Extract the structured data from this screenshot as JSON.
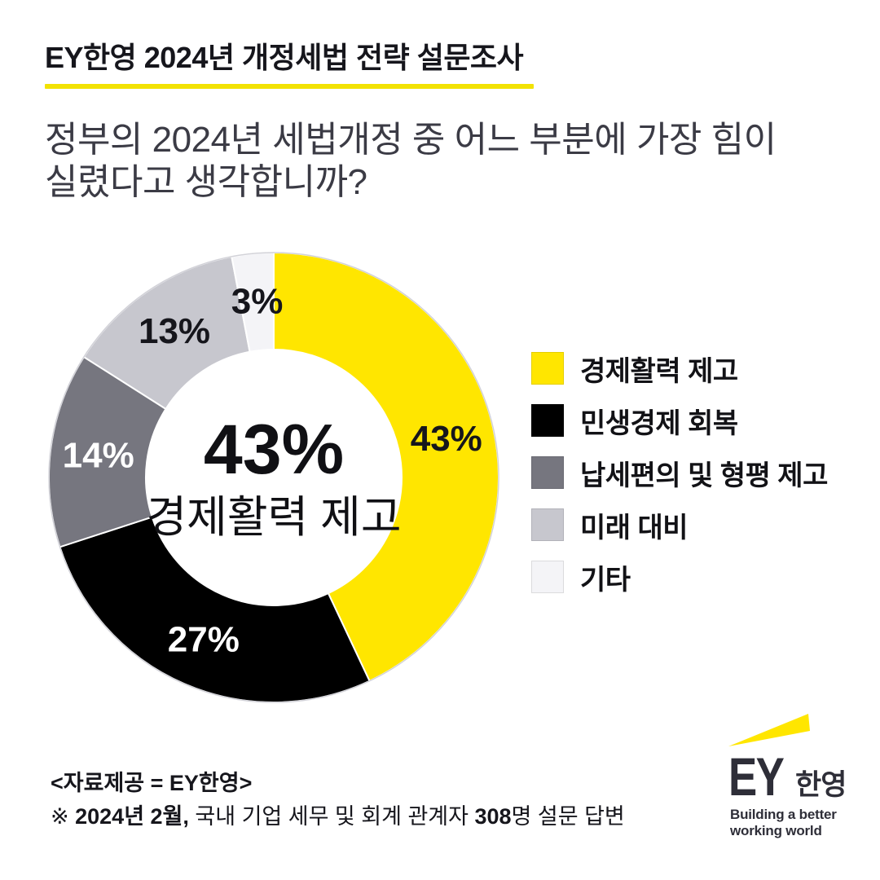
{
  "header": {
    "title": "EY한영 2024년 개정세법 전략 설문조사"
  },
  "question": {
    "line1": "정부의 2024년 세법개정 중 어느 부분에 가장 힘이",
    "line2": "실렸다고 생각합니까?"
  },
  "chart_data": {
    "type": "pie",
    "subtype": "donut",
    "title": "정부의 2024년 세법개정 중 어느 부분에 가장 힘이 실렸다고 생각합니까?",
    "categories": [
      "경제활력 제고",
      "민생경제 회복",
      "납세편의 및 형평 제고",
      "미래 대비",
      "기타"
    ],
    "values": [
      43,
      27,
      14,
      13,
      3
    ],
    "unit": "%",
    "colors": [
      "#FFE600",
      "#000000",
      "#76767F",
      "#C7C7CE",
      "#F4F4F7"
    ],
    "label_colors": [
      "#16161c",
      "#ffffff",
      "#ffffff",
      "#16161c",
      "#16161c"
    ],
    "start_angle_deg": 0,
    "direction": "clockwise",
    "legend_position": "right",
    "center_label": {
      "value": "43%",
      "caption": "경제활력 제고"
    }
  },
  "legend": {
    "items": [
      {
        "label": "경제활력 제고",
        "color": "#FFE600"
      },
      {
        "label": "민생경제 회복",
        "color": "#000000"
      },
      {
        "label": "납세편의 및 형평 제고",
        "color": "#76767F"
      },
      {
        "label": "미래 대비",
        "color": "#C7C7CE"
      },
      {
        "label": "기타",
        "color": "#F4F4F7"
      }
    ]
  },
  "footer": {
    "source": "<자료제공 = EY한영>",
    "note": {
      "prefix": "※ ",
      "bold1": "2024년 2월,",
      "middle": " 국내 기업 세무 및 회계 관계자 ",
      "bold2": "308",
      "suffix": "명 설문 답변"
    }
  },
  "logo": {
    "ey": "EY",
    "local": "한영",
    "tagline_line1": "Building a better",
    "tagline_line2": "working world",
    "beam_color": "#FFE600",
    "text_color": "#2E2E38"
  },
  "theme": {
    "accent_yellow": "#FFE600",
    "underline_yellow": "#F2E203",
    "heading_color": "#16161C",
    "question_color": "#3B3B45",
    "donut_rim_color": "#D2D2D8"
  }
}
